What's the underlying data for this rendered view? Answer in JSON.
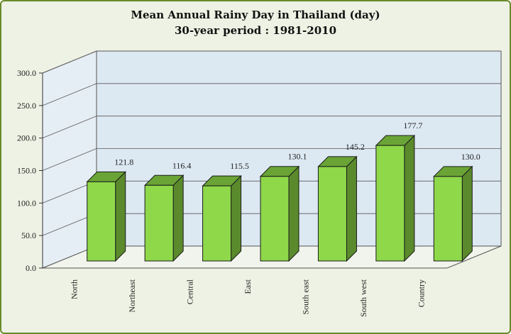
{
  "chart_data": {
    "type": "bar",
    "title": "Mean Annual Rainy Day in Thailand (day)",
    "subtitle": "30-year period : 1981-2010",
    "categories": [
      "North",
      "Northeast",
      "Central",
      "East",
      "South east",
      "South west",
      "Country"
    ],
    "values": [
      121.8,
      116.4,
      115.5,
      130.1,
      145.2,
      177.7,
      130.0
    ],
    "data_labels": [
      "121.8",
      "116.4",
      "115.5",
      "130.1",
      "145.2",
      "177.7",
      "130.0"
    ],
    "y_ticks": [
      "0.0",
      "50.0",
      "100.0",
      "150.0",
      "200.0",
      "250.0",
      "300.0"
    ],
    "ylim": [
      0,
      300
    ],
    "xlabel": "",
    "ylabel": "",
    "grid": true,
    "legend": "none",
    "colors": {
      "bar_front": "#8ed84a",
      "bar_side": "#5a8a2c",
      "bar_top": "#6aa436",
      "plot_back": "#dce8f2",
      "frame_border": "#6a8a2a"
    }
  }
}
